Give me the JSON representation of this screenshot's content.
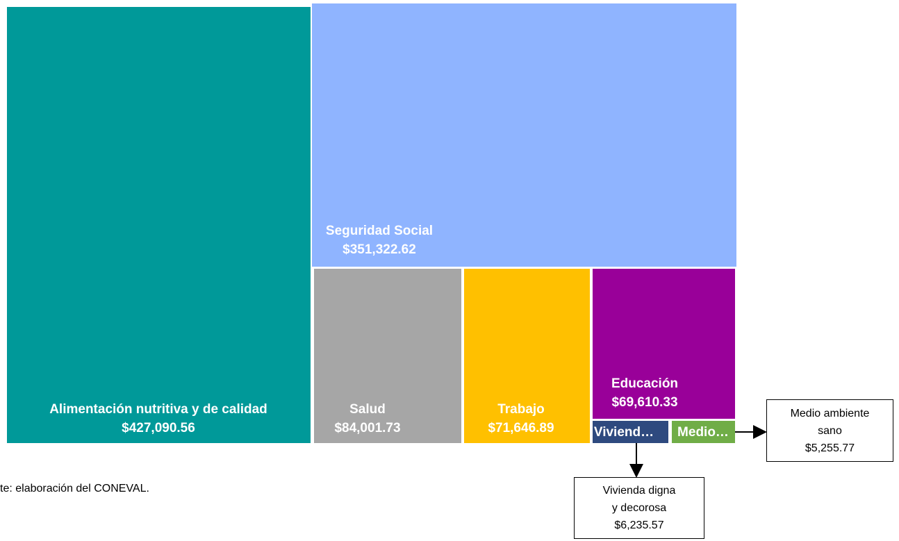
{
  "chart_data": {
    "type": "treemap",
    "categories": [
      "Alimentación nutritiva y de calidad",
      "Seguridad Social",
      "Salud",
      "Trabajo",
      "Educación",
      "Vivienda digna y decorosa",
      "Medio ambiente sano"
    ],
    "values": [
      427090.56,
      351322.62,
      84001.73,
      71646.89,
      69610.33,
      6235.57,
      5255.77
    ],
    "value_labels": [
      "$427,090.56",
      "$351,322.62",
      "$84,001.73",
      "$71,646.89",
      "$69,610.33",
      "$6,235.57",
      "$5,255.77"
    ],
    "short_labels": [
      null,
      null,
      null,
      null,
      null,
      "Viviend…",
      "Medio…"
    ],
    "colors": [
      "#009999",
      "#8fb4ff",
      "#a6a6a6",
      "#ffc000",
      "#990099",
      "#2e4a7f",
      "#70ad47"
    ],
    "source": "te: elaboración del CONEVAL."
  }
}
